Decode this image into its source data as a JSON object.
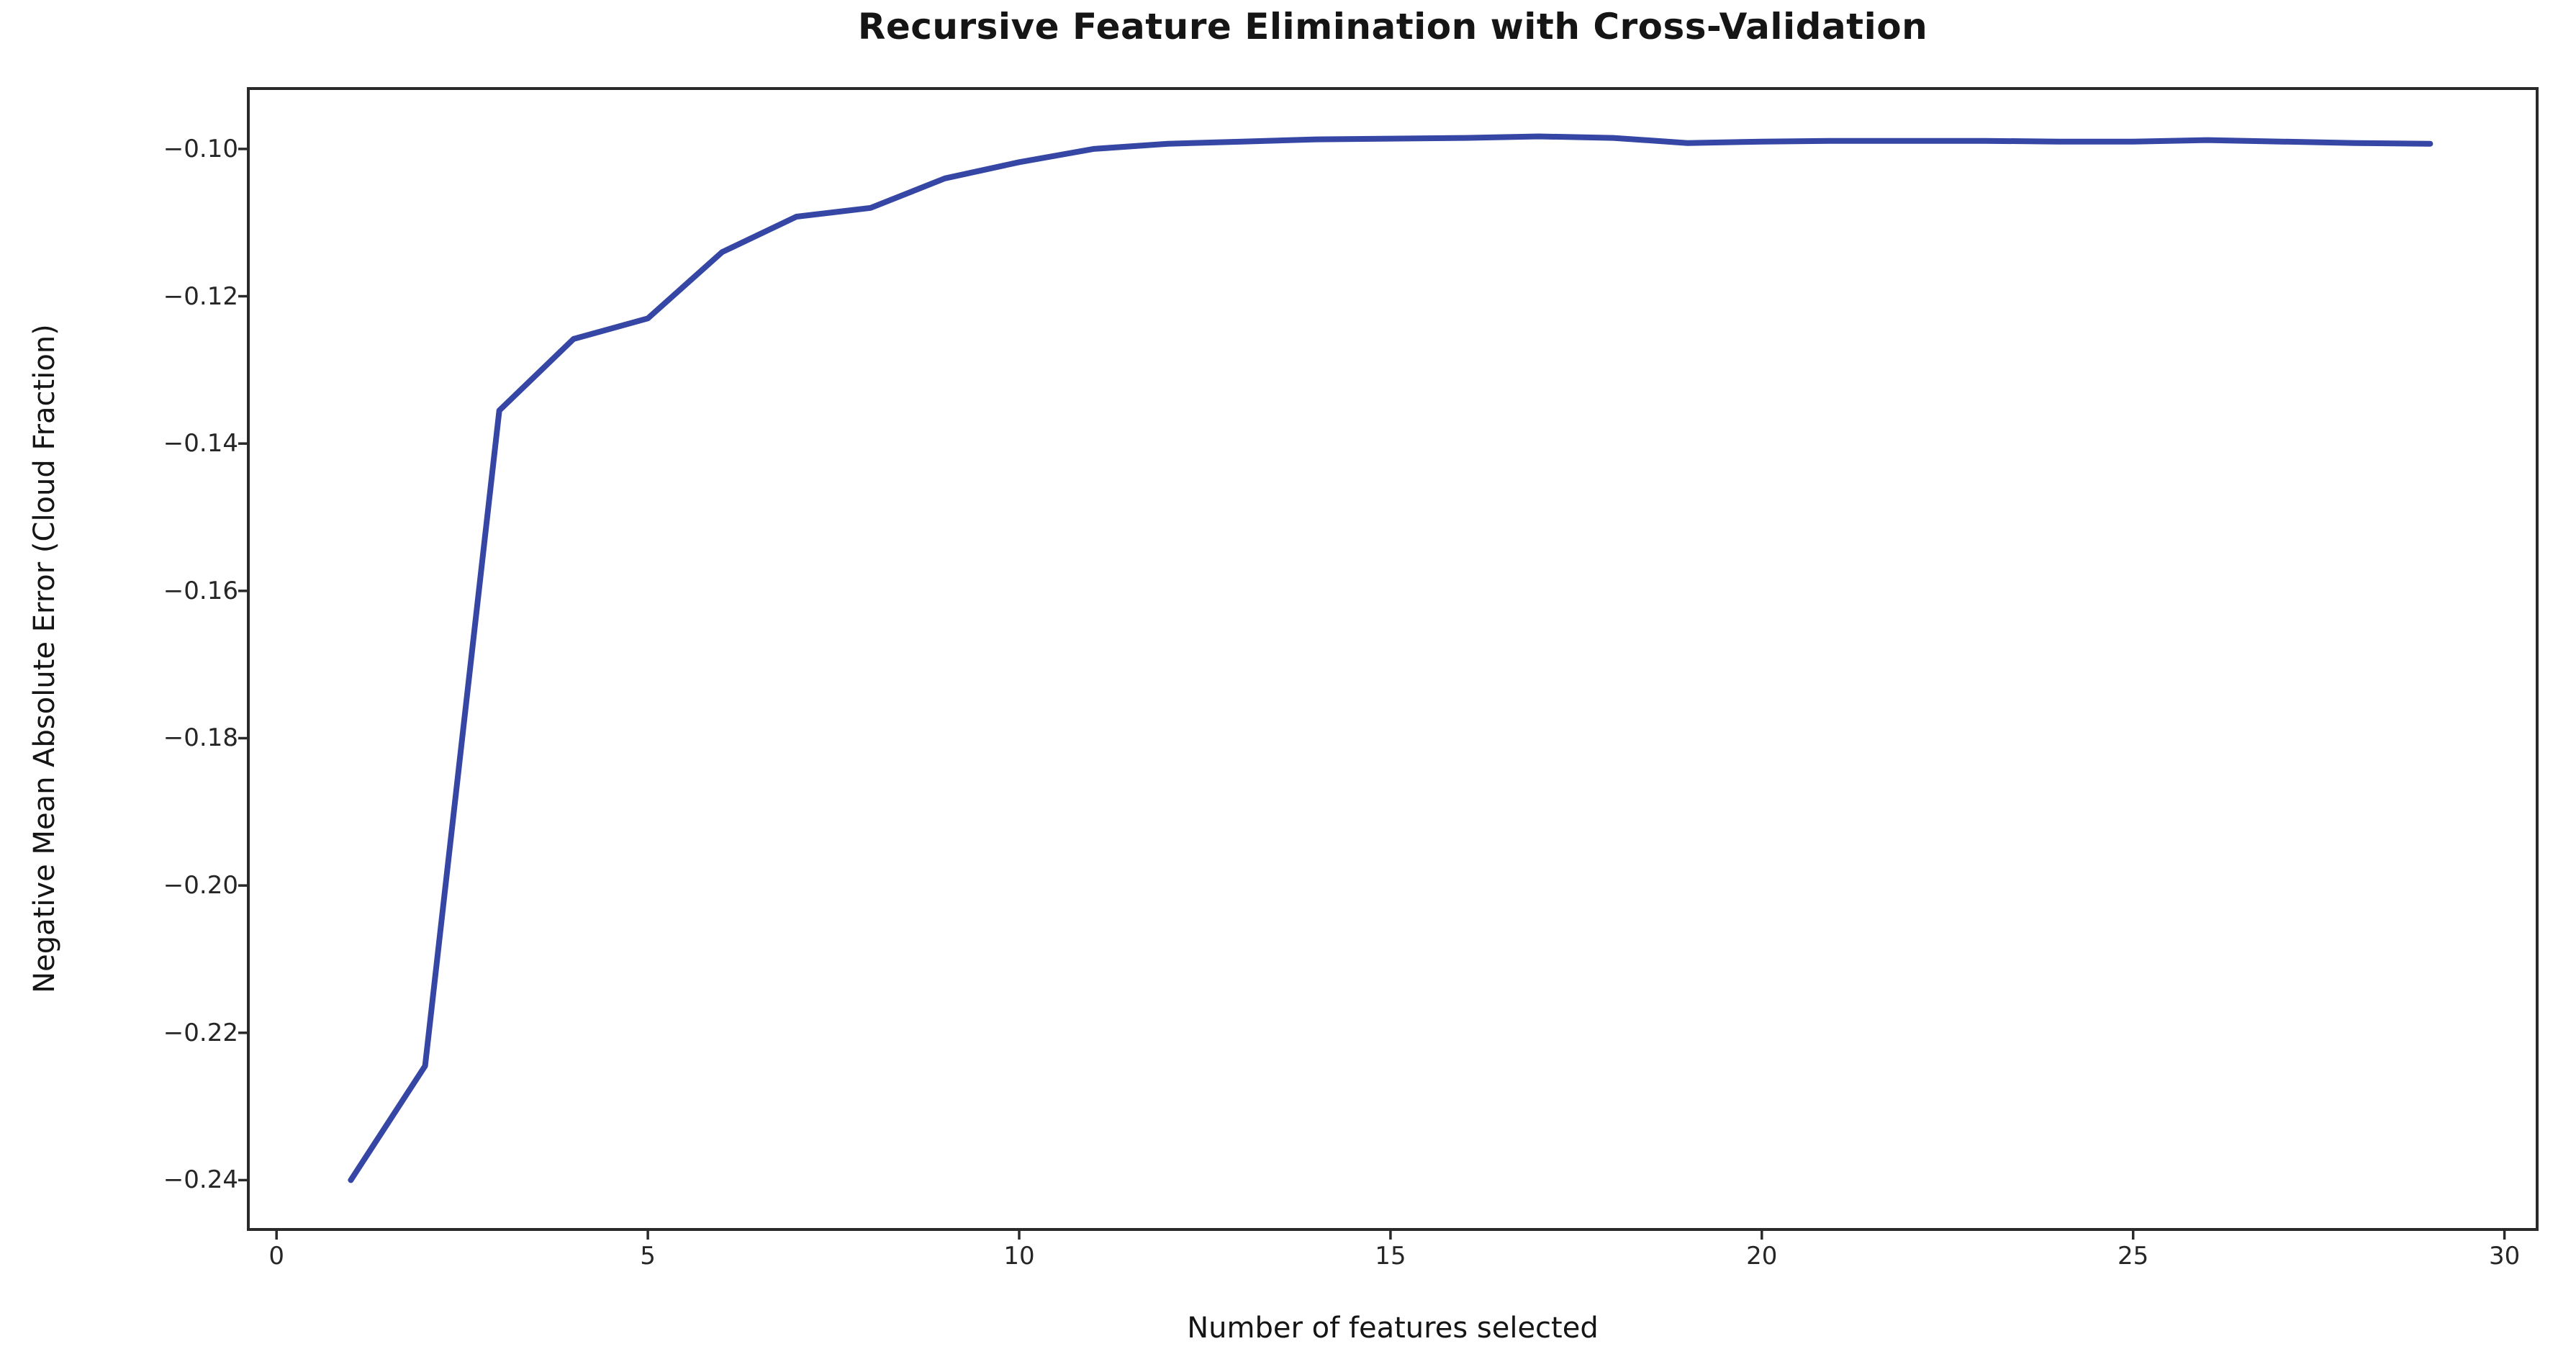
{
  "title": "Recursive Feature Elimination with Cross-Validation",
  "chart_data": {
    "type": "line",
    "title": "Recursive Feature Elimination with Cross-Validation",
    "xlabel": "Number of features selected",
    "ylabel": "Negative Mean Absolute Error (Cloud Fraction)",
    "x": [
      1,
      2,
      3,
      4,
      5,
      6,
      7,
      8,
      9,
      10,
      11,
      12,
      13,
      14,
      15,
      16,
      17,
      18,
      19,
      20,
      21,
      22,
      23,
      24,
      25,
      26,
      27,
      28,
      29
    ],
    "y": [
      -0.24,
      -0.2245,
      -0.1355,
      -0.1258,
      -0.123,
      -0.114,
      -0.1092,
      -0.108,
      -0.104,
      -0.1018,
      -0.1,
      -0.0993,
      -0.099,
      -0.0987,
      -0.0986,
      -0.0985,
      -0.0983,
      -0.0985,
      -0.0992,
      -0.099,
      -0.0989,
      -0.0989,
      -0.0989,
      -0.099,
      -0.099,
      -0.0988,
      -0.099,
      -0.0992,
      -0.0993
    ],
    "x_ticks": [
      0,
      5,
      10,
      15,
      20,
      25,
      30
    ],
    "x_tick_labels": [
      "0",
      "5",
      "10",
      "15",
      "20",
      "25",
      "30"
    ],
    "y_ticks": [
      -0.1,
      -0.12,
      -0.14,
      -0.16,
      -0.18,
      -0.2,
      -0.22,
      -0.24
    ],
    "y_tick_labels": [
      "−0.10",
      "−0.12",
      "−0.14",
      "−0.16",
      "−0.18",
      "−0.20",
      "−0.22",
      "−0.24"
    ],
    "xlim": [
      -0.38,
      30.44
    ],
    "ylim": [
      -0.2467,
      -0.0918
    ],
    "grid": false,
    "legend_position": "none",
    "line_color": "#3546a5",
    "spine_color": "#2a2a2a",
    "tick_color": "#2a2a2a",
    "text_color": "#262626"
  }
}
